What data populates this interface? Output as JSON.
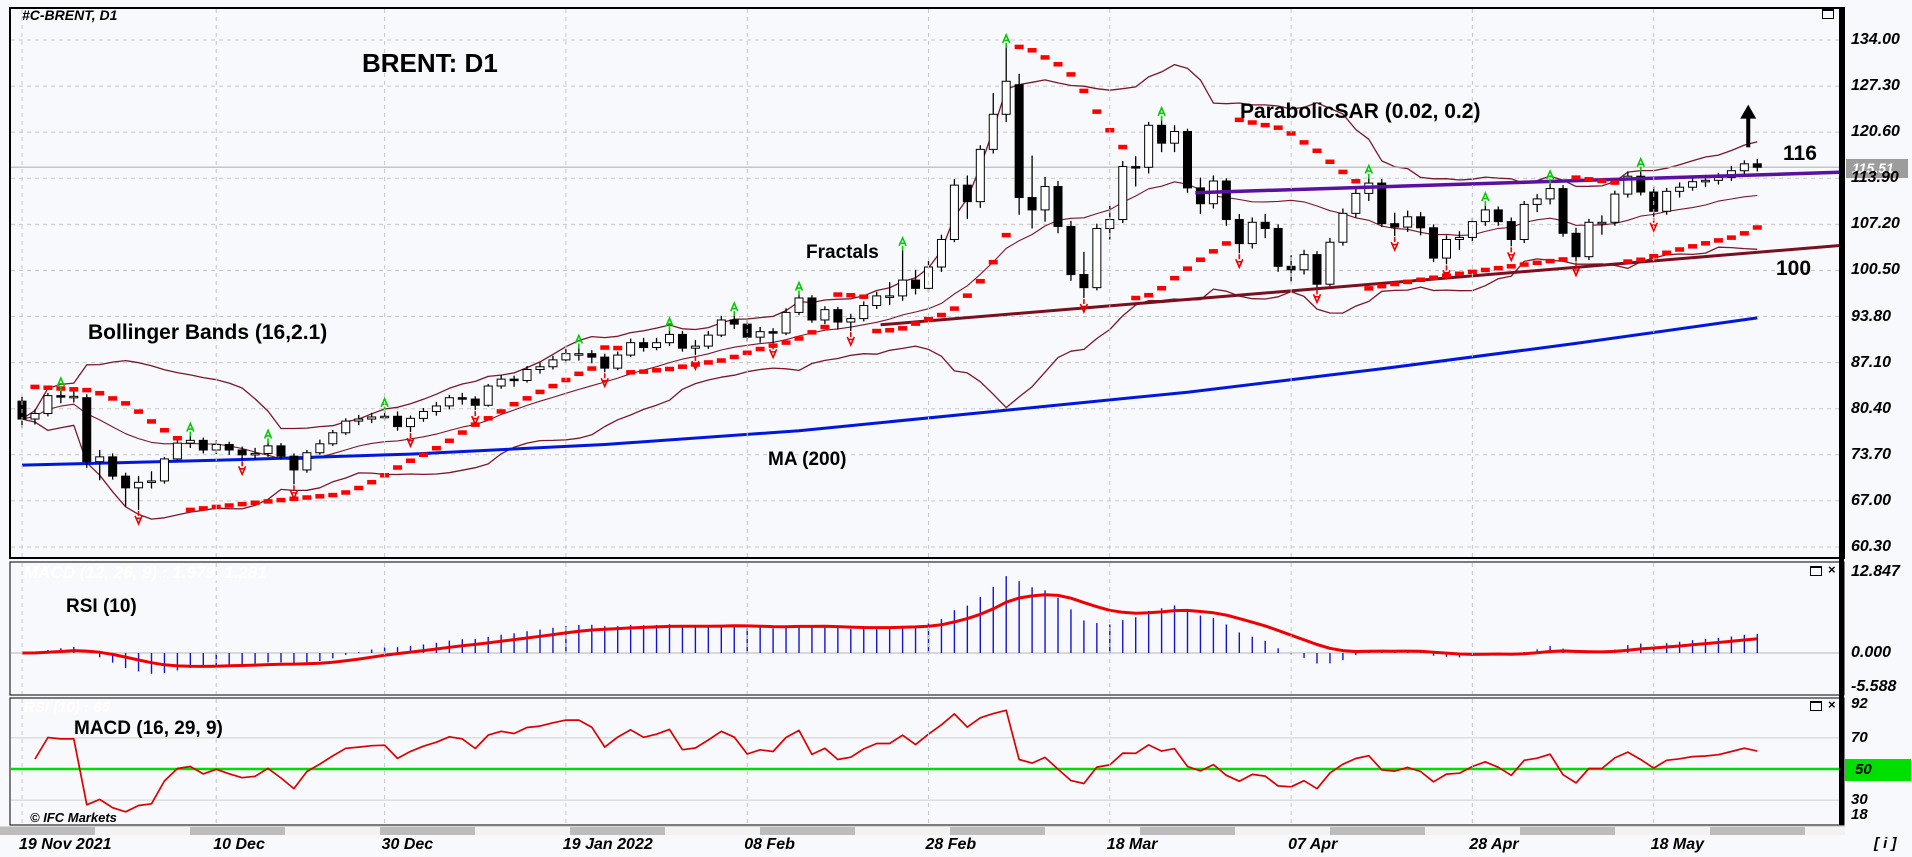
{
  "header": {
    "symbol_label": "#C-BRENT, D1"
  },
  "main_chart": {
    "title": "BRENT: D1",
    "labels": {
      "bollinger": "Bollinger Bands (16,2.1)",
      "fractals": "Fractals",
      "psar": "ParabolicSAR (0.02, 0.2)",
      "ma": "MA (200)",
      "level_116": "116",
      "level_100": "100"
    },
    "price_badge": "115.51",
    "price_axis_labels": [
      "134.00",
      "127.30",
      "120.60",
      "113.90",
      "107.20",
      "100.50",
      "93.80",
      "87.10",
      "80.40",
      "73.70",
      "67.00",
      "60.30"
    ]
  },
  "macd_panel": {
    "watermark": "MACD (12, 26, 9) : 1.979, 1.281",
    "annotation": "RSI (10)",
    "axis_labels": [
      "12.847",
      "0.000",
      "-5.588"
    ]
  },
  "rsi_panel": {
    "watermark": "RSI (10) : 65",
    "annotation": "MACD (16, 29, 9)",
    "axis_labels": [
      "92",
      "70",
      "30",
      "18"
    ],
    "level_badge": "50",
    "copyright": "© IFC Markets"
  },
  "footer": {
    "info_glyph": "[ i ]"
  },
  "colors": {
    "background": "#f8f9fc",
    "grid": "#c9c9c9",
    "candle_up": "#ffffff",
    "candle_down": "#000000",
    "bollinger": "#7b1728",
    "ma200": "#0018dd",
    "trendline": "#7b0f1e",
    "ray_116": "#5a10a0",
    "psar": "#ff0000",
    "fractal_up": "#00cc00",
    "fractal_down": "#ee0000",
    "macd_bar": "#1414cc",
    "macd_signal": "#f00000",
    "rsi_line": "#dd0000",
    "level_50": "#00dd00",
    "price_line": "#b4b4b4",
    "badge_bg": "#9c9c9c"
  },
  "chart_data": {
    "type": "candlestick",
    "symbol": "#C-BRENT",
    "timeframe": "D1",
    "title": "BRENT: D1",
    "y_axis": {
      "min": 60.3,
      "max": 134.0,
      "ticks": [
        134.0,
        127.3,
        120.6,
        113.9,
        107.2,
        100.5,
        93.8,
        87.1,
        80.4,
        73.7,
        67.0,
        60.3
      ]
    },
    "x_ticks": [
      {
        "label": "19 Nov 2021",
        "day": 0
      },
      {
        "label": "10 Dec",
        "day": 15
      },
      {
        "label": "30 Dec",
        "day": 28
      },
      {
        "label": "19 Jan 2022",
        "day": 42
      },
      {
        "label": "08 Feb",
        "day": 56
      },
      {
        "label": "28 Feb",
        "day": 70
      },
      {
        "label": "18 Mar",
        "day": 84
      },
      {
        "label": "07 Apr",
        "day": 98
      },
      {
        "label": "28 Apr",
        "day": 112
      },
      {
        "label": "18 May",
        "day": 126
      }
    ],
    "current_price": 115.51,
    "indicators": {
      "bollinger": {
        "period": 16,
        "deviation": 2.1
      },
      "parabolic_sar": {
        "step": 0.02,
        "max": 0.2
      },
      "moving_average": {
        "period": 200
      },
      "macd": {
        "fast": 12,
        "slow": 26,
        "signal": 9,
        "last_values": [
          1.979,
          1.281
        ],
        "axis_max": 12.847,
        "axis_min": -5.588
      },
      "rsi": {
        "period": 10,
        "last_value": 65,
        "axis": [
          92,
          70,
          50,
          30,
          18
        ],
        "level": 50
      }
    },
    "ma200_line": {
      "days": [
        0,
        15,
        30,
        45,
        60,
        75,
        90,
        105,
        120,
        134
      ],
      "values": [
        72.2,
        72.9,
        73.8,
        75.2,
        77.2,
        80.0,
        82.8,
        86.2,
        89.9,
        93.6
      ]
    },
    "trendline": {
      "day1": 66.3,
      "price1": 92.6,
      "day2": 140.8,
      "price2": 104.2,
      "label": "100"
    },
    "ray_116": {
      "day1": 90.6,
      "price1": 111.8,
      "day2": 140.8,
      "price2": 114.8,
      "label": "116"
    },
    "arrow_up": {
      "day": 133.3,
      "price_from": 118.4,
      "price_to": 124.6
    },
    "candles": [
      [
        81.5,
        82.2,
        77.6,
        78.9
      ],
      [
        78.9,
        80.3,
        78.1,
        79.7
      ],
      [
        79.7,
        82.7,
        79.3,
        82.3
      ],
      [
        82.3,
        83.1,
        81.2,
        82.2
      ],
      [
        82.2,
        82.9,
        81.3,
        82.2
      ],
      [
        82.0,
        82.5,
        71.8,
        72.7
      ],
      [
        72.7,
        74.4,
        70.0,
        73.4
      ],
      [
        73.4,
        73.9,
        70.1,
        70.6
      ],
      [
        70.6,
        71.1,
        66.2,
        68.9
      ],
      [
        68.9,
        70.6,
        65.7,
        69.7
      ],
      [
        69.7,
        71.3,
        68.8,
        69.9
      ],
      [
        69.9,
        73.4,
        69.5,
        73.1
      ],
      [
        73.1,
        75.9,
        72.8,
        75.4
      ],
      [
        75.4,
        76.5,
        74.7,
        75.8
      ],
      [
        75.8,
        76.2,
        73.9,
        74.4
      ],
      [
        74.4,
        75.8,
        73.8,
        75.2
      ],
      [
        75.2,
        75.6,
        73.7,
        74.4
      ],
      [
        74.4,
        74.9,
        72.9,
        73.7
      ],
      [
        73.7,
        74.7,
        73.0,
        73.9
      ],
      [
        73.9,
        75.5,
        73.4,
        75.0
      ],
      [
        75.0,
        75.4,
        73.0,
        73.5
      ],
      [
        73.5,
        73.9,
        69.4,
        71.5
      ],
      [
        71.5,
        74.4,
        71.1,
        74.0
      ],
      [
        74.0,
        75.9,
        73.7,
        75.3
      ],
      [
        75.3,
        77.3,
        75.0,
        76.9
      ],
      [
        76.9,
        79.0,
        76.6,
        78.6
      ],
      [
        78.6,
        79.5,
        78.0,
        78.9
      ],
      [
        78.9,
        79.8,
        78.3,
        79.2
      ],
      [
        79.2,
        80.1,
        78.7,
        79.3
      ],
      [
        79.3,
        80.0,
        77.2,
        77.8
      ],
      [
        77.8,
        79.4,
        77.0,
        79.0
      ],
      [
        79.0,
        80.5,
        78.5,
        80.0
      ],
      [
        80.0,
        81.4,
        79.4,
        80.8
      ],
      [
        80.8,
        82.4,
        80.3,
        82.0
      ],
      [
        82.0,
        82.7,
        81.0,
        81.8
      ],
      [
        81.8,
        82.2,
        80.2,
        80.9
      ],
      [
        80.9,
        84.0,
        80.7,
        83.7
      ],
      [
        83.7,
        85.3,
        83.3,
        84.7
      ],
      [
        84.7,
        85.2,
        83.6,
        84.5
      ],
      [
        84.5,
        86.6,
        84.2,
        86.1
      ],
      [
        86.1,
        87.1,
        85.5,
        86.5
      ],
      [
        86.5,
        88.1,
        86.1,
        87.5
      ],
      [
        87.5,
        89.1,
        87.2,
        88.4
      ],
      [
        88.4,
        89.3,
        87.4,
        88.4
      ],
      [
        88.4,
        88.9,
        87.0,
        87.9
      ],
      [
        87.9,
        88.4,
        85.7,
        86.3
      ],
      [
        86.3,
        88.7,
        86.0,
        88.2
      ],
      [
        88.2,
        90.6,
        87.9,
        90.0
      ],
      [
        90.0,
        90.7,
        88.7,
        89.3
      ],
      [
        89.3,
        90.7,
        88.9,
        90.0
      ],
      [
        90.0,
        91.8,
        89.5,
        91.2
      ],
      [
        91.2,
        91.7,
        88.7,
        89.2
      ],
      [
        89.2,
        90.4,
        88.2,
        89.5
      ],
      [
        89.5,
        91.7,
        89.1,
        91.1
      ],
      [
        91.1,
        93.9,
        90.8,
        93.3
      ],
      [
        93.3,
        94.0,
        92.0,
        92.7
      ],
      [
        92.7,
        93.2,
        90.2,
        90.8
      ],
      [
        90.8,
        92.3,
        90.0,
        91.6
      ],
      [
        91.6,
        92.1,
        89.9,
        91.4
      ],
      [
        91.4,
        95.0,
        91.1,
        94.4
      ],
      [
        94.4,
        97.0,
        94.0,
        96.5
      ],
      [
        96.5,
        96.9,
        92.9,
        93.3
      ],
      [
        93.3,
        95.3,
        92.7,
        94.8
      ],
      [
        94.8,
        95.2,
        91.9,
        93.0
      ],
      [
        93.0,
        94.2,
        91.7,
        93.5
      ],
      [
        93.5,
        96.0,
        93.1,
        95.4
      ],
      [
        95.4,
        97.4,
        94.9,
        96.8
      ],
      [
        96.8,
        98.8,
        95.5,
        96.8
      ],
      [
        96.8,
        103.5,
        96.1,
        99.1
      ],
      [
        99.1,
        100.6,
        97.0,
        97.9
      ],
      [
        97.9,
        101.9,
        97.4,
        101.0
      ],
      [
        101.0,
        105.7,
        100.3,
        105.0
      ],
      [
        105.0,
        113.8,
        104.6,
        112.9
      ],
      [
        112.9,
        114.3,
        108.0,
        110.5
      ],
      [
        110.5,
        118.7,
        109.6,
        118.1
      ],
      [
        118.1,
        126.3,
        117.5,
        123.2
      ],
      [
        123.2,
        133.0,
        122.1,
        128.0
      ],
      [
        127.5,
        129.1,
        108.6,
        111.1
      ],
      [
        111.1,
        117.2,
        106.6,
        109.3
      ],
      [
        109.3,
        114.1,
        107.6,
        112.7
      ],
      [
        112.7,
        113.5,
        105.9,
        106.9
      ],
      [
        106.9,
        107.7,
        99.0,
        99.9
      ],
      [
        99.9,
        103.2,
        96.5,
        98.0
      ],
      [
        98.0,
        107.3,
        97.6,
        106.6
      ],
      [
        106.6,
        109.9,
        105.0,
        107.9
      ],
      [
        107.9,
        116.4,
        107.4,
        115.6
      ],
      [
        115.6,
        117.1,
        112.7,
        115.5
      ],
      [
        115.5,
        122.1,
        114.6,
        121.6
      ],
      [
        121.6,
        122.4,
        117.7,
        119.0
      ],
      [
        119.0,
        121.6,
        117.7,
        120.7
      ],
      [
        120.7,
        121.1,
        111.8,
        112.5
      ],
      [
        112.5,
        114.0,
        108.7,
        110.2
      ],
      [
        110.2,
        114.3,
        109.5,
        113.5
      ],
      [
        113.5,
        113.9,
        107.0,
        107.9
      ],
      [
        107.9,
        108.7,
        103.0,
        104.4
      ],
      [
        104.4,
        108.2,
        103.7,
        107.5
      ],
      [
        107.5,
        108.7,
        105.2,
        106.6
      ],
      [
        106.6,
        107.2,
        100.3,
        101.1
      ],
      [
        101.1,
        102.7,
        98.8,
        100.6
      ],
      [
        100.6,
        103.5,
        99.9,
        102.8
      ],
      [
        102.8,
        103.3,
        97.9,
        98.5
      ],
      [
        98.5,
        105.2,
        98.2,
        104.6
      ],
      [
        104.6,
        109.5,
        104.1,
        108.8
      ],
      [
        108.8,
        112.4,
        108.2,
        111.7
      ],
      [
        111.7,
        114.0,
        110.6,
        113.2
      ],
      [
        113.2,
        113.8,
        106.8,
        107.3
      ],
      [
        107.3,
        108.9,
        105.5,
        106.8
      ],
      [
        106.8,
        109.2,
        106.1,
        108.3
      ],
      [
        108.3,
        109.0,
        105.6,
        106.7
      ],
      [
        106.7,
        107.2,
        101.7,
        102.3
      ],
      [
        102.3,
        105.6,
        101.4,
        105.0
      ],
      [
        105.0,
        106.2,
        103.5,
        105.3
      ],
      [
        105.3,
        108.1,
        104.7,
        107.6
      ],
      [
        107.6,
        110.0,
        107.0,
        109.3
      ],
      [
        109.3,
        109.8,
        107.0,
        107.6
      ],
      [
        107.6,
        108.2,
        104.0,
        105.0
      ],
      [
        105.0,
        110.6,
        104.5,
        110.1
      ],
      [
        110.1,
        111.6,
        109.0,
        110.9
      ],
      [
        110.9,
        113.2,
        110.1,
        112.4
      ],
      [
        112.4,
        112.9,
        105.4,
        105.9
      ],
      [
        105.9,
        106.7,
        101.8,
        102.5
      ],
      [
        102.5,
        108.0,
        102.0,
        107.5
      ],
      [
        107.5,
        108.5,
        105.7,
        107.5
      ],
      [
        107.5,
        112.1,
        107.0,
        111.6
      ],
      [
        111.6,
        114.9,
        111.1,
        114.2
      ],
      [
        114.2,
        115.0,
        111.4,
        111.9
      ],
      [
        111.9,
        112.7,
        108.3,
        109.1
      ],
      [
        109.1,
        112.5,
        108.6,
        112.0
      ],
      [
        112.0,
        113.3,
        111.1,
        112.6
      ],
      [
        112.6,
        114.1,
        112.1,
        113.4
      ],
      [
        113.4,
        114.4,
        112.6,
        113.6
      ],
      [
        113.6,
        114.7,
        113.0,
        114.0
      ],
      [
        114.0,
        115.7,
        113.5,
        115.0
      ],
      [
        115.0,
        116.5,
        114.4,
        116.0
      ],
      [
        116.0,
        116.7,
        114.9,
        115.5
      ]
    ]
  }
}
